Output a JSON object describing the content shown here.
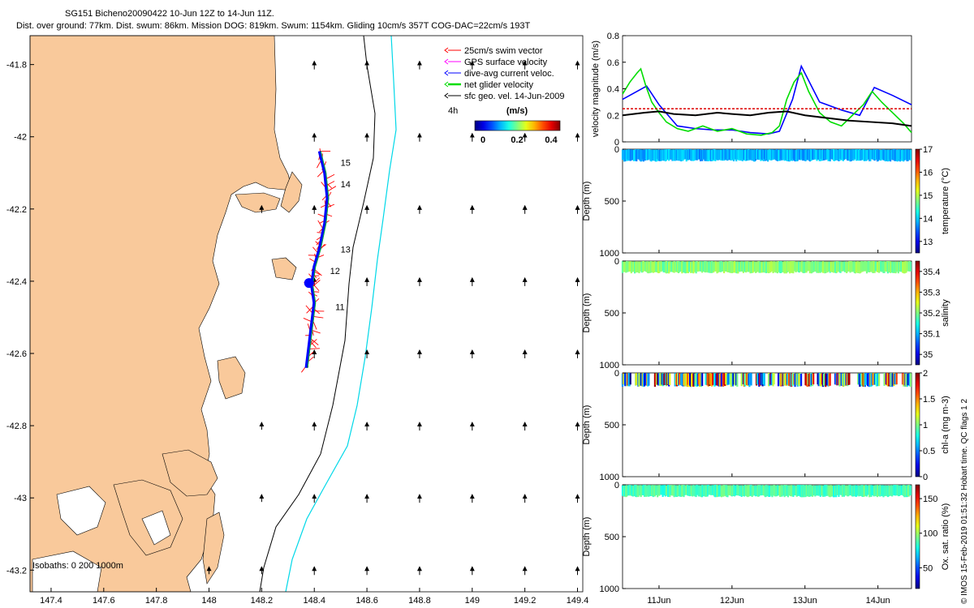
{
  "header": {
    "line1": "SG151 Bicheno20090422 10-Jun 12Z to 14-Jun 11Z.",
    "line2": "Dist. over ground: 77km. Dist. swum: 86km. Mission DOG: 819km. Swum: 1154km. Gliding 10cm/s 357T COG-DAC=22cm/s 193T"
  },
  "side_label": "© IMOS 15-Feb-2019 01:51:32 Hobart time. QC flags 1  2",
  "colors": {
    "land": "#f9c99b",
    "isobath_0": "#000000",
    "isobath_1000": "#00d8e8",
    "swim": "#ff0000",
    "gps": "#ff00ff",
    "dive_avg": "#0000ff",
    "net": "#00dd00",
    "geo": "#000000"
  },
  "chart_data": [
    {
      "type": "map",
      "x_ticks": [
        "147.4",
        "147.6",
        "147.8",
        "148",
        "148.2",
        "148.4",
        "148.6",
        "148.8",
        "149",
        "149.2",
        "149.4"
      ],
      "y_ticks": [
        "-41.8",
        "-42",
        "-42.2",
        "-42.4",
        "-42.6",
        "-42.8",
        "-43",
        "-43.2"
      ],
      "xlim": [
        147.32,
        149.42
      ],
      "ylim": [
        -43.26,
        -41.72
      ],
      "legend": {
        "position": "top-right",
        "entries": [
          {
            "label": "25cm/s swim vector",
            "color": "#ff0000"
          },
          {
            "label": "GPS surface velocity",
            "color": "#ff00ff"
          },
          {
            "label": "dive-avg current veloc.",
            "color": "#0000ff"
          },
          {
            "label": "net glider velocity",
            "color": "#00dd00"
          },
          {
            "label": "sfc geo. vel. 14-Jun-2009",
            "color": "#000000"
          }
        ]
      },
      "colorbar": {
        "label": "(m/s)",
        "ticks": [
          "0",
          "0.2",
          "0.4"
        ],
        "range": [
          0,
          0.5
        ]
      },
      "time_label": "4h",
      "isobaths_label": "Isobaths: 0   200  1000m",
      "day_labels": [
        {
          "text": "15",
          "lon": 148.5,
          "lat": -42.08
        },
        {
          "text": "14",
          "lon": 148.5,
          "lat": -42.14
        },
        {
          "text": "13",
          "lon": 148.5,
          "lat": -42.32
        },
        {
          "text": "12",
          "lon": 148.46,
          "lat": -42.38
        },
        {
          "text": "11",
          "lon": 148.48,
          "lat": -42.48
        }
      ],
      "track": [
        [
          148.42,
          -42.04
        ],
        [
          148.44,
          -42.1
        ],
        [
          148.45,
          -42.17
        ],
        [
          148.44,
          -42.24
        ],
        [
          148.42,
          -42.31
        ],
        [
          148.4,
          -42.36
        ],
        [
          148.39,
          -42.41
        ],
        [
          148.4,
          -42.46
        ],
        [
          148.39,
          -42.52
        ],
        [
          148.38,
          -42.58
        ],
        [
          148.37,
          -42.64
        ]
      ],
      "geo_grid": {
        "lon": [
          148.4,
          148.6,
          148.8,
          149.0,
          149.2,
          149.4
        ],
        "lat": [
          -41.8,
          -42.0,
          -42.2,
          -42.4,
          -42.6,
          -42.8,
          -43.0,
          -43.2
        ]
      }
    },
    {
      "type": "line",
      "ylabel": "velocity magnitude (m/s)",
      "ylim": [
        0,
        0.8
      ],
      "yticks": [
        "0",
        "0.2",
        "0.4",
        "0.6",
        "0.8"
      ],
      "x_ticks": [
        "11Jun",
        "12Jun",
        "13Jun",
        "14Jun"
      ],
      "xlim": [
        10.5,
        14.46
      ],
      "reference_line": 0.25,
      "series": [
        {
          "color": "#0000ff",
          "x": [
            10.5,
            10.83,
            11.0,
            11.25,
            11.5,
            11.75,
            12.0,
            12.25,
            12.5,
            12.65,
            12.83,
            12.95,
            13.2,
            13.5,
            13.75,
            13.95,
            14.2,
            14.46
          ],
          "y": [
            0.32,
            0.42,
            0.28,
            0.12,
            0.1,
            0.09,
            0.09,
            0.07,
            0.06,
            0.08,
            0.32,
            0.57,
            0.3,
            0.24,
            0.2,
            0.41,
            0.35,
            0.28
          ]
        },
        {
          "color": "#00dd00",
          "x": [
            10.5,
            10.6,
            10.7,
            10.75,
            10.82,
            10.9,
            11.0,
            11.1,
            11.25,
            11.4,
            11.6,
            11.8,
            12.0,
            12.2,
            12.4,
            12.55,
            12.65,
            12.75,
            12.85,
            12.95,
            13.05,
            13.2,
            13.35,
            13.5,
            13.65,
            13.8,
            13.92,
            14.05,
            14.2,
            14.35,
            14.46
          ],
          "y": [
            0.36,
            0.45,
            0.52,
            0.55,
            0.42,
            0.3,
            0.22,
            0.15,
            0.1,
            0.08,
            0.12,
            0.08,
            0.1,
            0.06,
            0.05,
            0.07,
            0.12,
            0.32,
            0.45,
            0.52,
            0.38,
            0.22,
            0.15,
            0.12,
            0.2,
            0.28,
            0.38,
            0.3,
            0.22,
            0.14,
            0.07
          ]
        },
        {
          "color": "#000000",
          "x": [
            10.5,
            10.8,
            11.0,
            11.2,
            11.5,
            11.8,
            12.0,
            12.25,
            12.5,
            12.75,
            13.0,
            13.3,
            13.6,
            13.9,
            14.2,
            14.46
          ],
          "y": [
            0.2,
            0.22,
            0.23,
            0.21,
            0.2,
            0.22,
            0.21,
            0.2,
            0.22,
            0.23,
            0.2,
            0.18,
            0.16,
            0.15,
            0.14,
            0.12
          ]
        }
      ]
    },
    {
      "type": "scatter",
      "ylabel": "Depth (m)",
      "ylim": [
        1000,
        0
      ],
      "yticks": [
        "0",
        "500",
        "1000"
      ],
      "cbar_label": "temperature (°C)",
      "cbar_ticks": [
        "13",
        "14",
        "15",
        "16",
        "17"
      ],
      "cbar_range": [
        12.5,
        17
      ],
      "gaps": [],
      "band_color": "#1aa0e8"
    },
    {
      "type": "scatter",
      "ylabel": "Depth (m)",
      "ylim": [
        1000,
        0
      ],
      "yticks": [
        "0",
        "500",
        "1000"
      ],
      "cbar_label": "salinity",
      "cbar_ticks": [
        "35",
        "35.1",
        "35.2",
        "35.3",
        "35.4"
      ],
      "cbar_range": [
        34.95,
        35.45
      ],
      "gaps": [],
      "band_color": "#22b04a"
    },
    {
      "type": "scatter",
      "ylabel": "Depth (m)",
      "ylim": [
        1000,
        0
      ],
      "yticks": [
        "0",
        "500",
        "1000"
      ],
      "cbar_label": "chl-a (mg m-3)",
      "cbar_ticks": [
        "0",
        "0.5",
        "1",
        "1.5",
        "2"
      ],
      "cbar_range": [
        0,
        2
      ],
      "gaps": [
        [
          10.62,
          10.68
        ],
        [
          10.87,
          10.94
        ],
        [
          11.16,
          11.22
        ],
        [
          11.6,
          11.64
        ],
        [
          12.08,
          12.13
        ],
        [
          12.27,
          12.33
        ],
        [
          12.45,
          12.5
        ],
        [
          12.58,
          12.63
        ],
        [
          12.95,
          13.0
        ],
        [
          13.12,
          13.17
        ],
        [
          13.35,
          13.41
        ],
        [
          13.62,
          13.72
        ],
        [
          14.02,
          14.08
        ],
        [
          14.26,
          14.33
        ]
      ],
      "band_color": "mixed"
    },
    {
      "type": "scatter",
      "ylabel": "Depth (m)",
      "ylim": [
        1000,
        0
      ],
      "yticks": [
        "0",
        "500",
        "1000"
      ],
      "cbar_label": "Ox. sat. ratio (%)",
      "cbar_ticks": [
        "50",
        "100",
        "150"
      ],
      "cbar_range": [
        20,
        170
      ],
      "gaps": [],
      "band_color": "#26b890"
    }
  ]
}
